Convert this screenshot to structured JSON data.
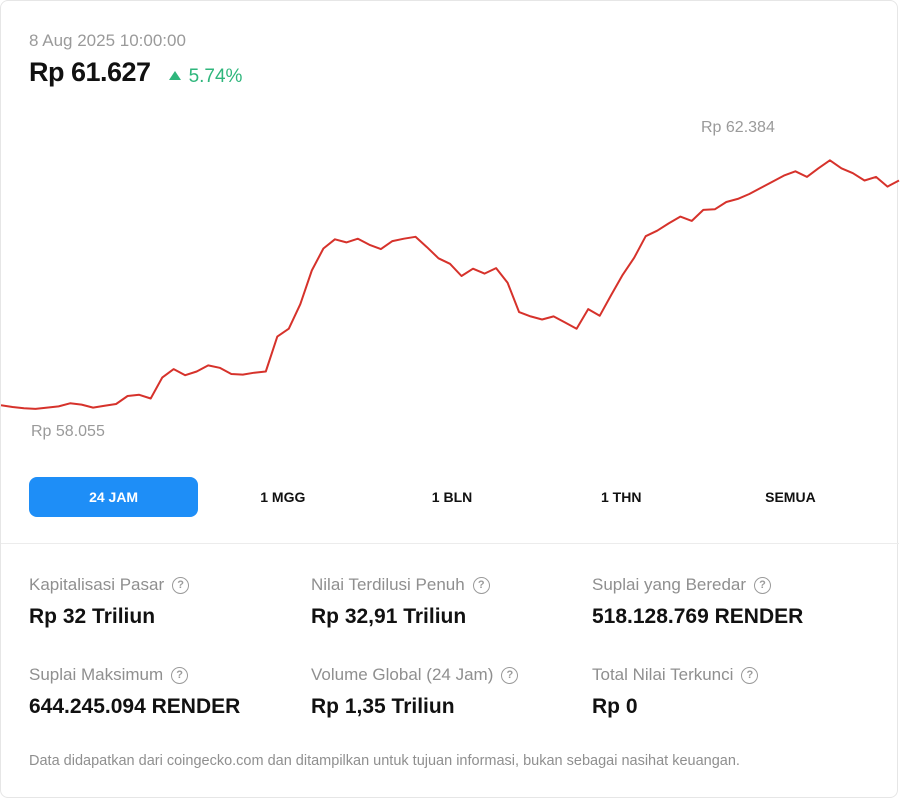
{
  "header": {
    "timestamp": "8 Aug 2025 10:00:00",
    "price": "Rp 61.627",
    "change_pct": "5.74%",
    "change_direction": "up",
    "change_color": "#2fb67c"
  },
  "chart_data": {
    "type": "line",
    "high_label": "Rp 62.384",
    "low_label": "Rp 58.055",
    "ylim": [
      58055,
      62384
    ],
    "line_color": "#d6322b",
    "grid": false,
    "y": [
      58150,
      58120,
      58100,
      58090,
      58110,
      58130,
      58180,
      58160,
      58110,
      58140,
      58170,
      58300,
      58320,
      58260,
      58600,
      58740,
      58640,
      58700,
      58800,
      58760,
      58660,
      58650,
      58680,
      58700,
      59270,
      59400,
      59800,
      60350,
      60710,
      60860,
      60810,
      60870,
      60770,
      60700,
      60830,
      60870,
      60900,
      60730,
      60550,
      60460,
      60260,
      60380,
      60300,
      60390,
      60150,
      59670,
      59600,
      59550,
      59600,
      59500,
      59400,
      59720,
      59610,
      59950,
      60280,
      60560,
      60910,
      61000,
      61120,
      61230,
      61160,
      61340,
      61350,
      61470,
      61520,
      61600,
      61700,
      61800,
      61900,
      61970,
      61880,
      62020,
      62150,
      62020,
      61940,
      61820,
      61880,
      61720,
      61820
    ]
  },
  "tabs": [
    {
      "label": "24 JAM",
      "active": true
    },
    {
      "label": "1 MGG",
      "active": false
    },
    {
      "label": "1 BLN",
      "active": false
    },
    {
      "label": "1 THN",
      "active": false
    },
    {
      "label": "SEMUA",
      "active": false
    }
  ],
  "stats": [
    {
      "label": "Kapitalisasi Pasar",
      "value": "Rp 32 Triliun"
    },
    {
      "label": "Nilai Terdilusi Penuh",
      "value": "Rp 32,91 Triliun"
    },
    {
      "label": "Suplai yang Beredar",
      "value": "518.128.769 RENDER"
    },
    {
      "label": "Suplai Maksimum",
      "value": "644.245.094 RENDER"
    },
    {
      "label": "Volume Global (24 Jam)",
      "value": "Rp 1,35 Triliun"
    },
    {
      "label": "Total Nilai Terkunci",
      "value": "Rp 0"
    }
  ],
  "help_icon_glyph": "?",
  "footnote": "Data didapatkan dari coingecko.com dan ditampilkan untuk tujuan informasi, bukan sebagai nasihat keuangan."
}
